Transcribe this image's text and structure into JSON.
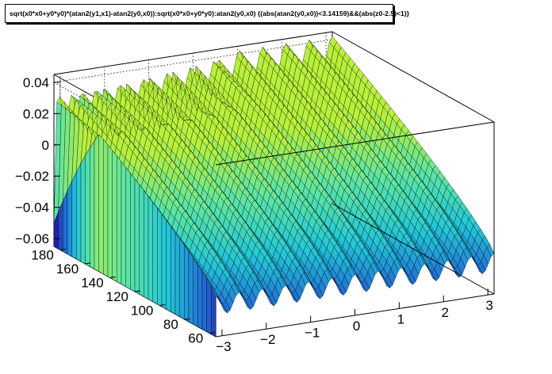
{
  "title": "sqrt(x0*x0+y0*y0)*(atan2(y1,x1)-atan2(y0,x0)):sqrt(x0*x0+y0*y0):atan2(y0,x0) {(abs(atan2(y0,x0))<3.14159)&&(abs(z0-2.5)<1)}",
  "chart_data": {
    "type": "surface",
    "title": "sqrt(x0*x0+y0*y0)*(atan2(y1,x1)-atan2(y0,x0)):sqrt(x0*x0+y0*y0):atan2(y0,x0) {(abs(atan2(y0,x0))<3.14159)&&(abs(z0-2.5)<1)}",
    "xlabel": "",
    "ylabel": "",
    "zlabel": "",
    "x_range": [
      -3.14159,
      3.14159
    ],
    "y_range": [
      55,
      185
    ],
    "z_range": [
      -0.065,
      0.045
    ],
    "x_ticks": [
      -3,
      -2,
      -1,
      0,
      1,
      2,
      3
    ],
    "x_tick_labels": [
      "−3",
      "−2",
      "−1",
      "0",
      "1",
      "2",
      "3"
    ],
    "y_ticks": [
      60,
      80,
      100,
      120,
      140,
      160,
      180
    ],
    "y_tick_labels": [
      "60",
      "80",
      "100",
      "120",
      "140",
      "160",
      "180"
    ],
    "z_ticks": [
      -0.06,
      -0.04,
      -0.02,
      0,
      0.02,
      0.04
    ],
    "z_tick_labels": [
      "−0.06",
      "−0.04",
      "−0.02",
      "0",
      "0.02",
      "0.04"
    ],
    "ripple_periods_over_x_range": 12,
    "z_at_y_min": {
      "mean": -0.045,
      "ripple_amplitude": 0.006
    },
    "z_at_y_max": {
      "mean": 0.03,
      "ripple_amplitude": 0.012,
      "min_dips_to": -0.062
    },
    "grid": true,
    "palette": [
      "#2a0fa0",
      "#1f6fd6",
      "#22c8d8",
      "#5fe6a0",
      "#b8f03a"
    ]
  }
}
